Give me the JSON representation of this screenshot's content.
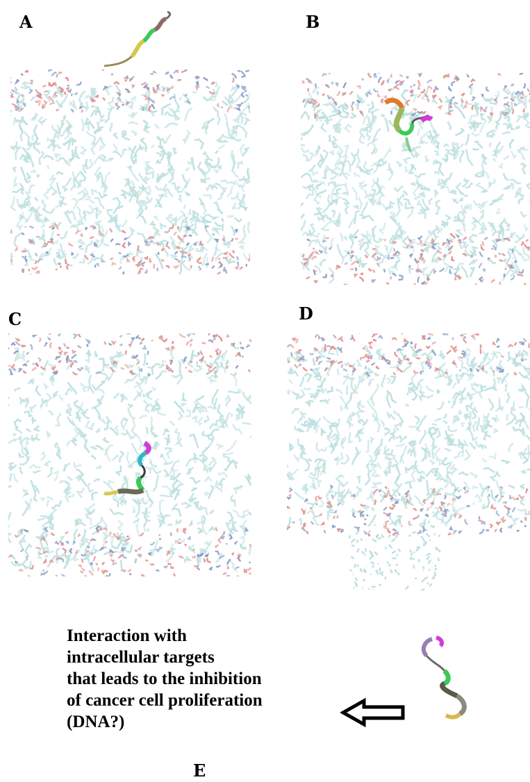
{
  "panels": [
    {
      "id": "A",
      "label": "A",
      "has_peptide": true,
      "peptide_position": "above membrane"
    },
    {
      "id": "B",
      "label": "B",
      "has_peptide": true,
      "peptide_position": "upper leaflet"
    },
    {
      "id": "C",
      "label": "C",
      "has_peptide": true,
      "peptide_position": "membrane core"
    },
    {
      "id": "D",
      "label": "D",
      "has_peptide": false,
      "peptide_position": "translocated, membrane disrupted"
    }
  ],
  "caption": {
    "lines": [
      "Interaction with",
      "intracellular targets",
      "that leads to the inhibition",
      "of cancer cell proliferation",
      "(DNA?)"
    ]
  },
  "panel_e_label": "E",
  "colors": {
    "lipid_tail": "#bfe0e0",
    "headgroup_red": "#e3908c",
    "headgroup_blue": "#8a9ec9",
    "peptide_green": "#3cc95a",
    "peptide_yellow": "#d8c84a",
    "peptide_magenta": "#d23cd6",
    "peptide_gray": "#8c8c8c"
  },
  "icons": {
    "arrow": "left-outline-arrow-icon"
  }
}
